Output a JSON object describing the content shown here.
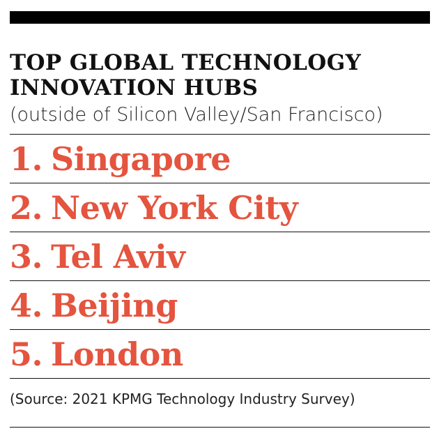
{
  "title": {
    "line1": "TOP GLOBAL TECHNOLOGY",
    "line2": "INNOVATION HUBS"
  },
  "subtitle": "(outside of Silicon Valley/San Francisco)",
  "hubs": [
    {
      "rank": "1.",
      "city": "Singapore"
    },
    {
      "rank": "2.",
      "city": "New York City"
    },
    {
      "rank": "3.",
      "city": "Tel Aviv"
    },
    {
      "rank": "4.",
      "city": "Beijing"
    },
    {
      "rank": "5.",
      "city": "London"
    }
  ],
  "source": "(Source: 2021 KPMG Technology Industry Survey)",
  "colors": {
    "accent": "#e4543f",
    "text": "#111111",
    "background": "#ffffff"
  }
}
